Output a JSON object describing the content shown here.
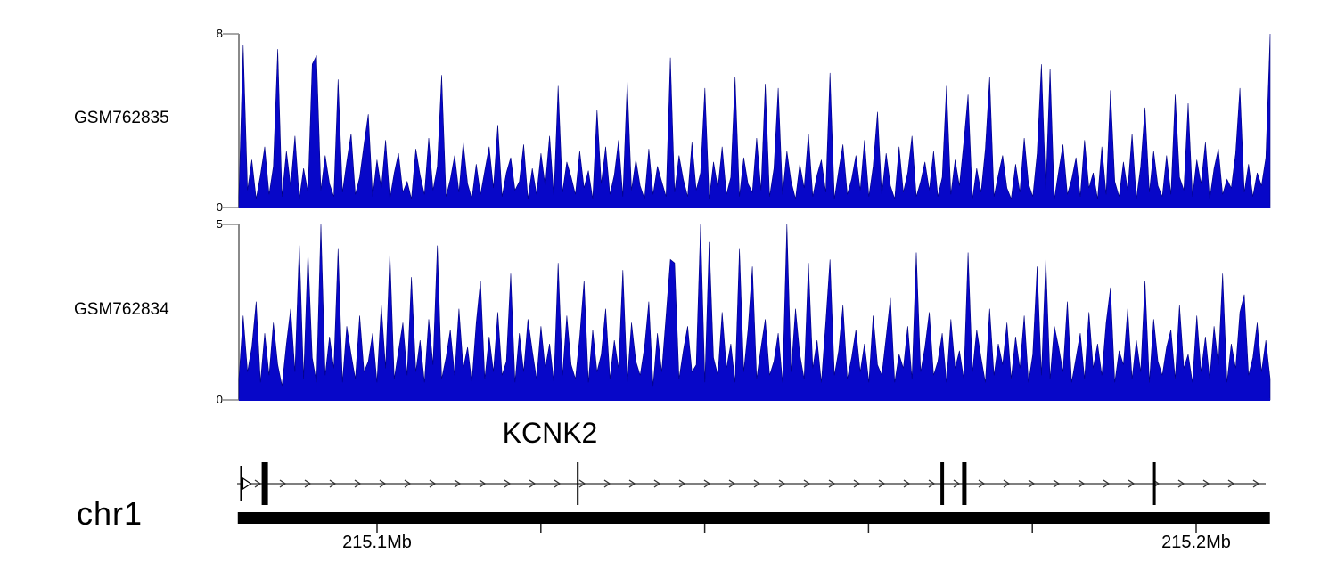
{
  "colors": {
    "signal_fill": "#0707c8",
    "signal_stroke": "#000080",
    "axis_line": "#8a8a8a",
    "gene_line": "#555555",
    "arrow": "#333333",
    "exon_fill": "#000000",
    "chrom_bar": "#000000",
    "tick": "#222222"
  },
  "chart_data": [
    {
      "type": "area",
      "title": "GSM762835 signal coverage",
      "track_label": "GSM762835",
      "ylim": [
        0,
        8
      ],
      "ytick_labels": {
        "max": "8",
        "min": "0"
      },
      "x_range_mb": [
        215.083,
        215.209
      ],
      "values": [
        0.5,
        7.5,
        0.8,
        2.2,
        0.4,
        1.5,
        2.8,
        0.6,
        1.9,
        7.3,
        0.5,
        2.6,
        1.0,
        3.3,
        0.4,
        1.8,
        0.7,
        6.6,
        7.0,
        0.8,
        2.4,
        1.1,
        0.5,
        5.9,
        0.7,
        2.1,
        3.4,
        0.6,
        1.4,
        2.9,
        4.3,
        0.5,
        2.2,
        0.9,
        3.1,
        0.4,
        1.6,
        2.5,
        0.7,
        1.2,
        0.4,
        2.7,
        1.5,
        0.6,
        3.2,
        0.8,
        1.9,
        6.1,
        0.5,
        1.3,
        2.4,
        0.7,
        3.0,
        1.1,
        0.4,
        2.0,
        0.6,
        1.7,
        2.8,
        0.9,
        3.8,
        0.5,
        1.6,
        2.3,
        0.8,
        1.2,
        2.9,
        0.4,
        1.8,
        0.6,
        2.5,
        1.0,
        3.3,
        0.5,
        5.6,
        0.7,
        2.1,
        1.4,
        0.6,
        2.6,
        0.9,
        1.7,
        0.4,
        4.5,
        1.1,
        2.8,
        0.6,
        1.5,
        3.1,
        0.5,
        5.8,
        0.8,
        2.2,
        1.0,
        0.4,
        2.7,
        0.6,
        1.9,
        1.2,
        0.5,
        6.9,
        0.7,
        2.4,
        1.3,
        0.5,
        3.0,
        0.8,
        1.6,
        5.5,
        0.4,
        2.1,
        0.9,
        2.8,
        0.6,
        1.4,
        6.0,
        0.5,
        2.3,
        1.1,
        0.7,
        3.2,
        0.8,
        5.7,
        0.5,
        1.8,
        5.5,
        0.6,
        2.6,
        1.2,
        0.4,
        2.0,
        0.9,
        3.4,
        0.5,
        1.5,
        2.2,
        0.7,
        6.2,
        0.4,
        1.7,
        2.9,
        0.6,
        1.3,
        2.4,
        0.8,
        3.1,
        0.5,
        1.9,
        4.4,
        0.6,
        2.5,
        1.0,
        0.4,
        2.8,
        0.7,
        1.6,
        3.3,
        0.5,
        1.2,
        2.1,
        0.8,
        2.6,
        0.5,
        1.4,
        5.6,
        0.6,
        2.2,
        1.0,
        3.0,
        5.2,
        0.4,
        1.8,
        0.7,
        2.7,
        6.0,
        0.5,
        1.5,
        2.4,
        0.9,
        0.4,
        2.0,
        0.7,
        3.2,
        1.1,
        0.5,
        2.5,
        6.6,
        0.8,
        6.4,
        0.4,
        1.7,
        2.9,
        0.6,
        1.3,
        2.3,
        0.5,
        3.1,
        0.9,
        1.6,
        0.4,
        2.8,
        0.6,
        5.4,
        1.2,
        0.5,
        2.1,
        0.8,
        3.4,
        0.4,
        1.9,
        4.6,
        0.7,
        2.6,
        1.0,
        0.5,
        2.4,
        0.6,
        5.2,
        1.4,
        0.8,
        4.8,
        0.5,
        2.2,
        1.1,
        3.0,
        0.4,
        1.8,
        2.7,
        0.6,
        1.3,
        0.9,
        2.5,
        5.5,
        0.7,
        2.0,
        0.5,
        1.6,
        1.0,
        2.3,
        8.0
      ]
    },
    {
      "type": "area",
      "title": "GSM762834 signal coverage",
      "track_label": "GSM762834",
      "ylim": [
        0,
        5
      ],
      "ytick_labels": {
        "max": "5",
        "min": "0"
      },
      "x_range_mb": [
        215.083,
        215.209
      ],
      "values": [
        0.6,
        2.4,
        0.8,
        1.5,
        2.8,
        0.5,
        1.9,
        0.7,
        2.2,
        1.0,
        0.4,
        1.6,
        2.6,
        0.8,
        4.4,
        0.6,
        4.2,
        1.2,
        0.5,
        5.0,
        0.7,
        1.8,
        0.9,
        4.3,
        0.5,
        2.1,
        1.3,
        0.6,
        2.4,
        0.8,
        1.1,
        1.9,
        0.5,
        2.7,
        0.9,
        4.2,
        0.6,
        1.4,
        2.2,
        0.7,
        3.5,
        0.8,
        1.7,
        0.5,
        2.3,
        1.0,
        4.4,
        0.6,
        1.2,
        2.0,
        0.7,
        2.6,
        0.9,
        1.5,
        0.5,
        2.2,
        3.4,
        0.6,
        1.8,
        0.8,
        2.5,
        0.7,
        1.1,
        3.6,
        0.5,
        1.9,
        0.8,
        2.3,
        1.4,
        0.6,
        2.1,
        0.9,
        1.6,
        0.5,
        3.9,
        0.7,
        2.4,
        1.0,
        0.6,
        1.8,
        3.4,
        0.5,
        2.0,
        0.8,
        1.3,
        2.6,
        0.6,
        1.7,
        0.9,
        3.7,
        0.5,
        2.2,
        1.1,
        0.7,
        1.5,
        2.8,
        0.4,
        1.9,
        0.8,
        2.4,
        4.0,
        3.9,
        0.6,
        1.4,
        2.1,
        0.8,
        1.0,
        5.0,
        0.5,
        4.5,
        1.2,
        0.7,
        2.5,
        0.9,
        1.6,
        0.5,
        4.3,
        0.8,
        2.0,
        3.8,
        0.6,
        1.5,
        2.3,
        0.7,
        1.1,
        1.9,
        0.5,
        5.0,
        0.8,
        2.6,
        1.3,
        0.6,
        3.9,
        0.9,
        1.7,
        0.5,
        2.2,
        4.0,
        0.7,
        1.4,
        2.7,
        0.6,
        1.2,
        2.0,
        0.8,
        1.6,
        0.5,
        2.4,
        1.0,
        0.7,
        1.8,
        2.9,
        0.5,
        1.3,
        0.9,
        2.1,
        0.6,
        4.2,
        0.8,
        1.5,
        2.5,
        0.7,
        1.1,
        1.9,
        0.5,
        2.3,
        0.9,
        1.4,
        0.6,
        4.2,
        0.8,
        2.0,
        1.2,
        0.5,
        2.6,
        0.7,
        1.6,
        1.0,
        2.2,
        0.6,
        1.8,
        0.9,
        2.4,
        0.5,
        1.3,
        3.8,
        0.7,
        4.0,
        0.6,
        2.1,
        1.5,
        0.8,
        2.8,
        0.5,
        1.2,
        1.9,
        0.6,
        2.5,
        0.9,
        1.6,
        0.7,
        2.2,
        3.2,
        0.5,
        1.4,
        1.0,
        2.6,
        0.6,
        1.7,
        0.8,
        3.4,
        0.5,
        2.3,
        1.1,
        0.7,
        1.5,
        2.0,
        0.6,
        2.7,
        0.9,
        1.3,
        0.5,
        2.4,
        0.8,
        1.8,
        0.6,
        2.1,
        1.0,
        3.6,
        0.5,
        1.6,
        0.9,
        2.5,
        3.0,
        0.7,
        1.2,
        2.2,
        0.8,
        1.7,
        0.6
      ]
    }
  ],
  "gene_track": {
    "gene_label": "KCNK2",
    "strand": "+",
    "tss_mb": 215.0834,
    "exons": [
      {
        "mb": 215.0863,
        "w": 7
      },
      {
        "mb": 215.1245,
        "w": 2
      },
      {
        "mb": 215.169,
        "w": 4
      },
      {
        "mb": 215.1717,
        "w": 5
      },
      {
        "mb": 215.1949,
        "w": 3
      }
    ]
  },
  "genome_axis": {
    "chromosome_label": "chr1",
    "start_mb": 215.083,
    "end_mb": 215.209,
    "minor_ticks_mb": [
      215.12,
      215.14,
      215.16,
      215.18
    ],
    "major_ticks": [
      {
        "mb": 215.1,
        "label": "215.1Mb"
      },
      {
        "mb": 215.2,
        "label": "215.2Mb"
      }
    ]
  }
}
